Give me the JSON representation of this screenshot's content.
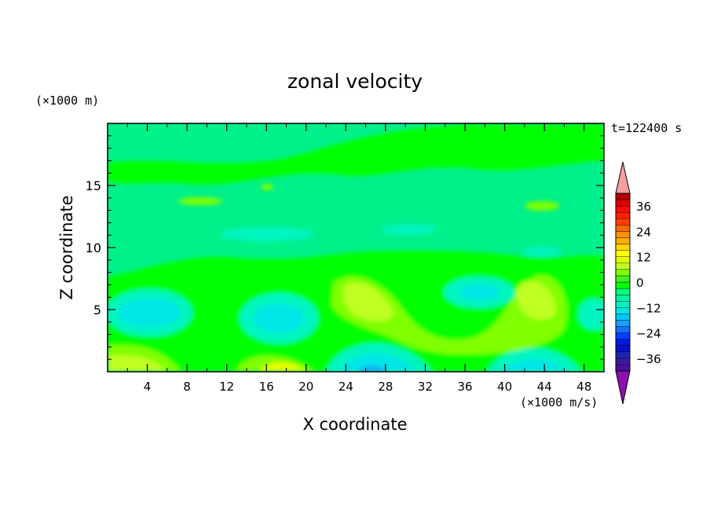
{
  "chart_data": {
    "type": "heatmap",
    "title": "zonal velocity",
    "xlabel": "X coordinate",
    "ylabel": "Z coordinate",
    "x_unit": "(×1000 m/s)",
    "y_unit": "(×1000 m)",
    "time_label": "t=122400 s",
    "xlim": [
      0,
      50
    ],
    "ylim": [
      0,
      20
    ],
    "x_ticks": [
      4,
      8,
      12,
      16,
      20,
      24,
      28,
      32,
      36,
      40,
      44,
      48
    ],
    "y_ticks": [
      5,
      10,
      15
    ],
    "colorbar": {
      "levels": [
        -42,
        -39,
        -36,
        -33,
        -30,
        -27,
        -24,
        -21,
        -18,
        -15,
        -12,
        -9,
        -6,
        -3,
        0,
        3,
        6,
        9,
        12,
        15,
        18,
        21,
        24,
        27,
        30,
        33,
        36,
        39,
        42
      ],
      "colors": [
        "#4b0f9b",
        "#3a1aa0",
        "#2024b0",
        "#0a10c8",
        "#0018e0",
        "#0040ff",
        "#1670ff",
        "#14a0ff",
        "#00c8ff",
        "#00e6e6",
        "#00f0c0",
        "#00f5a0",
        "#00ff7a",
        "#00ff00",
        "#40f020",
        "#80ff00",
        "#c0ff20",
        "#e6ff00",
        "#ffff00",
        "#ffd800",
        "#ffb000",
        "#ff9000",
        "#ff6a00",
        "#ff4000",
        "#ff2000",
        "#ff0a0a",
        "#e00000",
        "#b00000"
      ],
      "over_color": "#f4a0a0",
      "under_color": "#8a10b0",
      "tick_labels": [
        "36",
        "24",
        "12",
        "0",
        "−12",
        "−24",
        "−36"
      ],
      "tick_values": [
        36,
        24,
        12,
        0,
        -12,
        -24,
        -36
      ]
    }
  }
}
